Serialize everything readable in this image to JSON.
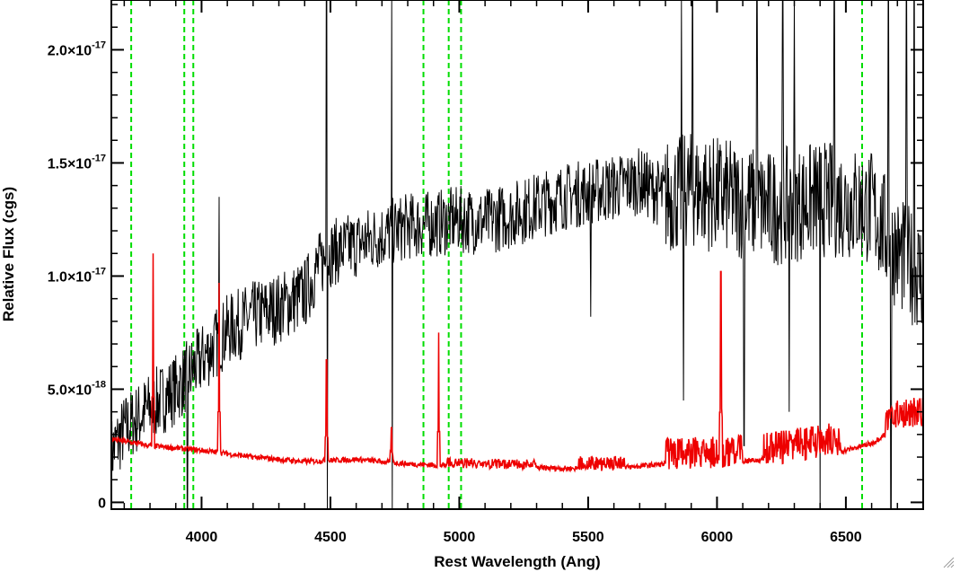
{
  "chart_data": {
    "type": "line",
    "xlabel": "Rest Wavelength (Ang)",
    "ylabel": "Relative Flux (cgs)",
    "xlim": [
      3650,
      6800
    ],
    "ylim": [
      -3e-19,
      2.22e-17
    ],
    "x_ticks": [
      {
        "value": 4000,
        "label": "4000"
      },
      {
        "value": 4500,
        "label": "4500"
      },
      {
        "value": 5000,
        "label": "5000"
      },
      {
        "value": 5500,
        "label": "5500"
      },
      {
        "value": 6000,
        "label": "6000"
      },
      {
        "value": 6500,
        "label": "6500"
      }
    ],
    "y_ticks": [
      {
        "value": 0,
        "mant": "0",
        "exp": ""
      },
      {
        "value": 5e-18,
        "mant": "5.0×10",
        "exp": "-18"
      },
      {
        "value": 1e-17,
        "mant": "1.0×10",
        "exp": "-17"
      },
      {
        "value": 1.5e-17,
        "mant": "1.5×10",
        "exp": "-17"
      },
      {
        "value": 2e-17,
        "mant": "2.0×10",
        "exp": "-17"
      }
    ],
    "x_minor_step": 100,
    "y_minor_step": 1e-18,
    "reference_lines": {
      "color": "#00dd00",
      "style": "dashed",
      "x": [
        3727,
        3933,
        3968,
        4861,
        4959,
        5007,
        6563
      ]
    },
    "series": [
      {
        "color": "#000000",
        "generated_noise": true,
        "continuum_x": [
          3650,
          3700,
          3800,
          3900,
          4000,
          4100,
          4200,
          4300,
          4400,
          4450,
          4500,
          4600,
          4700,
          4800,
          4900,
          5000,
          5100,
          5200,
          5300,
          5400,
          5500,
          5600,
          5700,
          5800,
          5900,
          6000,
          6100,
          6200,
          6300,
          6400,
          6500,
          6600,
          6700,
          6800
        ],
        "continuum_y": [
          2.2e-18,
          3.2e-18,
          4.2e-18,
          5e-18,
          6.3e-18,
          7.6e-18,
          8.2e-18,
          8.6e-18,
          9.2e-18,
          1.04e-17,
          1.1e-17,
          1.14e-17,
          1.18e-17,
          1.22e-17,
          1.23e-17,
          1.25e-17,
          1.24e-17,
          1.27e-17,
          1.31e-17,
          1.35e-17,
          1.37e-17,
          1.39e-17,
          1.42e-17,
          1.35e-17,
          1.38e-17,
          1.36e-17,
          1.33e-17,
          1.3e-17,
          1.32e-17,
          1.34e-17,
          1.33e-17,
          1.3e-17,
          1.1e-17,
          1e-17
        ],
        "spikes": [
          {
            "x": 3810,
            "y": 3.5e-18
          },
          {
            "x": 3945,
            "y": -3e-19
          },
          {
            "x": 4068,
            "y": 1.35e-17
          },
          {
            "x": 4485,
            "y": 2.3e-17
          },
          {
            "x": 4488,
            "y": -3e-19
          },
          {
            "x": 4738,
            "y": 2.3e-17
          },
          {
            "x": 4740,
            "y": -3e-19
          },
          {
            "x": 5510,
            "y": 8.2e-18
          },
          {
            "x": 5862,
            "y": 2.3e-17
          },
          {
            "x": 5870,
            "y": 4.5e-18
          },
          {
            "x": 5905,
            "y": 2.3e-17
          },
          {
            "x": 6105,
            "y": 2.5e-18
          },
          {
            "x": 6155,
            "y": 2.3e-17
          },
          {
            "x": 6255,
            "y": 2.3e-17
          },
          {
            "x": 6280,
            "y": 4e-18
          },
          {
            "x": 6300,
            "y": 2.3e-17
          },
          {
            "x": 6400,
            "y": -3e-19
          },
          {
            "x": 6455,
            "y": 2.3e-17
          },
          {
            "x": 6665,
            "y": 2.3e-17
          },
          {
            "x": 6675,
            "y": -3e-19
          },
          {
            "x": 6735,
            "y": 2.3e-17
          },
          {
            "x": 6765,
            "y": 2.3e-17
          }
        ]
      },
      {
        "color": "#ee0000",
        "generated_noise": true,
        "continuum_x": [
          3650,
          3800,
          4000,
          4200,
          4400,
          4600,
          4800,
          5000,
          5200,
          5400,
          5600,
          5800,
          6000,
          6200,
          6400,
          6500,
          6600,
          6650,
          6700,
          6800
        ],
        "continuum_y": [
          2.8e-18,
          2.5e-18,
          2.3e-18,
          2e-18,
          1.8e-18,
          1.9e-18,
          1.7e-18,
          1.6e-18,
          1.55e-18,
          1.5e-18,
          1.5e-18,
          1.7e-18,
          1.75e-18,
          1.9e-18,
          2.2e-18,
          2.3e-18,
          2.6e-18,
          3e-18,
          3.5e-18,
          3.6e-18
        ],
        "emission_lines": [
          {
            "x": 3812,
            "peak": 1.1e-17
          },
          {
            "x": 4068,
            "peak": 9.7e-18
          },
          {
            "x": 4485,
            "peak": 6.3e-18
          },
          {
            "x": 4737,
            "peak": 3.3e-18
          },
          {
            "x": 4920,
            "peak": 7.5e-18
          },
          {
            "x": 6015,
            "peak": 1.02e-17
          }
        ]
      }
    ]
  }
}
